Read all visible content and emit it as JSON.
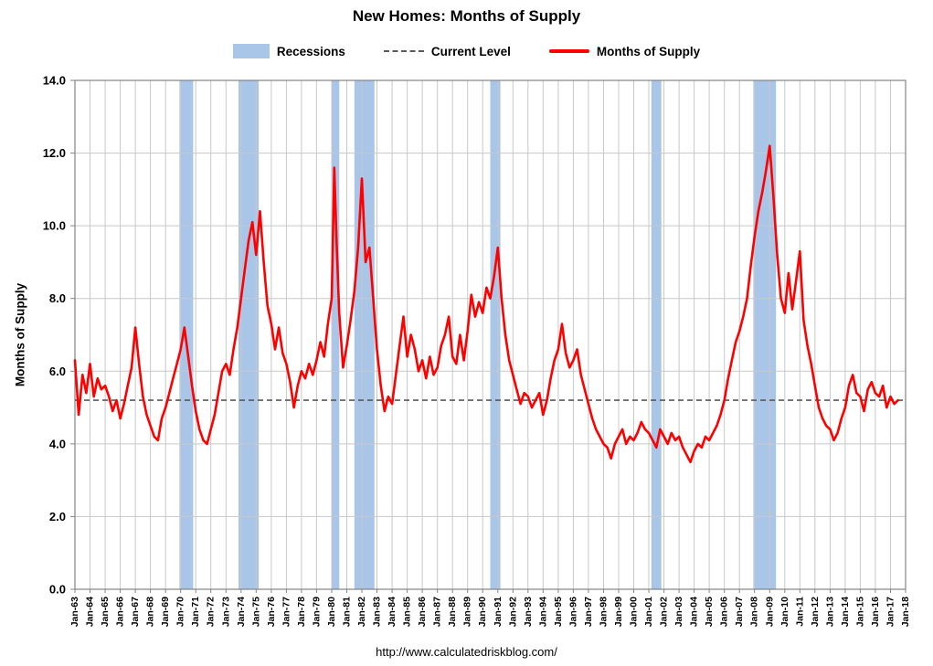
{
  "page": {
    "footer_url": "http://www.calculatedriskblog.com/"
  },
  "chart_data": {
    "type": "line",
    "title": "New Homes: Months of Supply",
    "xlabel": "",
    "ylabel": "Months of Supply",
    "xlim": [
      1963,
      2018
    ],
    "ylim": [
      0,
      14
    ],
    "grid": true,
    "legend_position": "top",
    "y_ticks": [
      0,
      2,
      4,
      6,
      8,
      10,
      12,
      14
    ],
    "y_tick_labels": [
      "0.0",
      "2.0",
      "4.0",
      "6.0",
      "8.0",
      "10.0",
      "12.0",
      "14.0"
    ],
    "x_tick_labels": [
      "Jan-63",
      "Jan-64",
      "Jan-65",
      "Jan-66",
      "Jan-67",
      "Jan-68",
      "Jan-69",
      "Jan-70",
      "Jan-71",
      "Jan-72",
      "Jan-73",
      "Jan-74",
      "Jan-75",
      "Jan-76",
      "Jan-77",
      "Jan-78",
      "Jan-79",
      "Jan-80",
      "Jan-81",
      "Jan-82",
      "Jan-83",
      "Jan-84",
      "Jan-85",
      "Jan-86",
      "Jan-87",
      "Jan-88",
      "Jan-89",
      "Jan-90",
      "Jan-91",
      "Jan-92",
      "Jan-93",
      "Jan-94",
      "Jan-95",
      "Jan-96",
      "Jan-97",
      "Jan-98",
      "Jan-99",
      "Jan-00",
      "Jan-01",
      "Jan-02",
      "Jan-03",
      "Jan-04",
      "Jan-05",
      "Jan-06",
      "Jan-07",
      "Jan-08",
      "Jan-09",
      "Jan-10",
      "Jan-11",
      "Jan-12",
      "Jan-13",
      "Jan-14",
      "Jan-15",
      "Jan-16",
      "Jan-17",
      "Jan-18"
    ],
    "current_level": 5.2,
    "legend": [
      {
        "label": "Recessions",
        "type": "band"
      },
      {
        "label": "Current Level",
        "type": "dashed"
      },
      {
        "label": "Months of Supply",
        "type": "line"
      }
    ],
    "recessions": [
      [
        1969.92,
        1970.83
      ],
      [
        1973.83,
        1975.17
      ],
      [
        1980.0,
        1980.5
      ],
      [
        1981.5,
        1982.83
      ],
      [
        1990.5,
        1991.17
      ],
      [
        2001.17,
        2001.83
      ],
      [
        2007.92,
        2009.42
      ]
    ],
    "colors": {
      "line": "#FF0000",
      "recession": "#A9C6E8",
      "grid": "#C8C8C8",
      "border": "#848484",
      "current": "#595959"
    },
    "series": [
      {
        "name": "Months of Supply",
        "points": [
          [
            1963.0,
            6.3
          ],
          [
            1963.25,
            4.8
          ],
          [
            1963.5,
            5.9
          ],
          [
            1963.75,
            5.4
          ],
          [
            1964.0,
            6.2
          ],
          [
            1964.25,
            5.3
          ],
          [
            1964.5,
            5.8
          ],
          [
            1964.75,
            5.5
          ],
          [
            1965.0,
            5.6
          ],
          [
            1965.25,
            5.3
          ],
          [
            1965.5,
            4.9
          ],
          [
            1965.75,
            5.2
          ],
          [
            1966.0,
            4.7
          ],
          [
            1966.25,
            5.1
          ],
          [
            1966.5,
            5.6
          ],
          [
            1966.75,
            6.1
          ],
          [
            1967.0,
            7.2
          ],
          [
            1967.25,
            6.2
          ],
          [
            1967.5,
            5.3
          ],
          [
            1967.75,
            4.8
          ],
          [
            1968.0,
            4.5
          ],
          [
            1968.25,
            4.2
          ],
          [
            1968.5,
            4.1
          ],
          [
            1968.75,
            4.7
          ],
          [
            1969.0,
            5.0
          ],
          [
            1969.25,
            5.4
          ],
          [
            1969.5,
            5.8
          ],
          [
            1969.75,
            6.2
          ],
          [
            1970.0,
            6.6
          ],
          [
            1970.25,
            7.2
          ],
          [
            1970.5,
            6.4
          ],
          [
            1970.75,
            5.6
          ],
          [
            1971.0,
            4.9
          ],
          [
            1971.25,
            4.4
          ],
          [
            1971.5,
            4.1
          ],
          [
            1971.75,
            4.0
          ],
          [
            1972.0,
            4.4
          ],
          [
            1972.25,
            4.8
          ],
          [
            1972.5,
            5.4
          ],
          [
            1972.75,
            6.0
          ],
          [
            1973.0,
            6.2
          ],
          [
            1973.25,
            5.9
          ],
          [
            1973.5,
            6.6
          ],
          [
            1973.75,
            7.2
          ],
          [
            1974.0,
            8.0
          ],
          [
            1974.25,
            8.8
          ],
          [
            1974.5,
            9.6
          ],
          [
            1974.75,
            10.1
          ],
          [
            1975.0,
            9.2
          ],
          [
            1975.25,
            10.4
          ],
          [
            1975.5,
            9.0
          ],
          [
            1975.75,
            7.8
          ],
          [
            1976.0,
            7.3
          ],
          [
            1976.25,
            6.6
          ],
          [
            1976.5,
            7.2
          ],
          [
            1976.75,
            6.5
          ],
          [
            1977.0,
            6.2
          ],
          [
            1977.25,
            5.7
          ],
          [
            1977.5,
            5.0
          ],
          [
            1977.75,
            5.6
          ],
          [
            1978.0,
            6.0
          ],
          [
            1978.25,
            5.8
          ],
          [
            1978.5,
            6.2
          ],
          [
            1978.75,
            5.9
          ],
          [
            1979.0,
            6.3
          ],
          [
            1979.25,
            6.8
          ],
          [
            1979.5,
            6.4
          ],
          [
            1979.75,
            7.3
          ],
          [
            1980.0,
            8.0
          ],
          [
            1980.17,
            11.6
          ],
          [
            1980.33,
            9.5
          ],
          [
            1980.5,
            7.6
          ],
          [
            1980.75,
            6.1
          ],
          [
            1981.0,
            6.7
          ],
          [
            1981.25,
            7.4
          ],
          [
            1981.5,
            8.2
          ],
          [
            1981.75,
            9.4
          ],
          [
            1982.0,
            11.3
          ],
          [
            1982.25,
            9.0
          ],
          [
            1982.5,
            9.4
          ],
          [
            1982.75,
            8.0
          ],
          [
            1983.0,
            6.6
          ],
          [
            1983.25,
            5.6
          ],
          [
            1983.5,
            4.9
          ],
          [
            1983.75,
            5.3
          ],
          [
            1984.0,
            5.1
          ],
          [
            1984.25,
            5.9
          ],
          [
            1984.5,
            6.7
          ],
          [
            1984.75,
            7.5
          ],
          [
            1985.0,
            6.4
          ],
          [
            1985.25,
            7.0
          ],
          [
            1985.5,
            6.6
          ],
          [
            1985.75,
            6.0
          ],
          [
            1986.0,
            6.3
          ],
          [
            1986.25,
            5.8
          ],
          [
            1986.5,
            6.4
          ],
          [
            1986.75,
            5.9
          ],
          [
            1987.0,
            6.1
          ],
          [
            1987.25,
            6.7
          ],
          [
            1987.5,
            7.0
          ],
          [
            1987.75,
            7.5
          ],
          [
            1988.0,
            6.4
          ],
          [
            1988.25,
            6.2
          ],
          [
            1988.5,
            7.0
          ],
          [
            1988.75,
            6.3
          ],
          [
            1989.0,
            7.1
          ],
          [
            1989.25,
            8.1
          ],
          [
            1989.5,
            7.5
          ],
          [
            1989.75,
            7.9
          ],
          [
            1990.0,
            7.6
          ],
          [
            1990.25,
            8.3
          ],
          [
            1990.5,
            8.0
          ],
          [
            1990.75,
            8.6
          ],
          [
            1991.0,
            9.4
          ],
          [
            1991.25,
            8.0
          ],
          [
            1991.5,
            7.0
          ],
          [
            1991.75,
            6.3
          ],
          [
            1992.0,
            5.9
          ],
          [
            1992.25,
            5.5
          ],
          [
            1992.5,
            5.1
          ],
          [
            1992.75,
            5.4
          ],
          [
            1993.0,
            5.3
          ],
          [
            1993.25,
            5.0
          ],
          [
            1993.5,
            5.2
          ],
          [
            1993.75,
            5.4
          ],
          [
            1994.0,
            4.8
          ],
          [
            1994.25,
            5.2
          ],
          [
            1994.5,
            5.8
          ],
          [
            1994.75,
            6.3
          ],
          [
            1995.0,
            6.6
          ],
          [
            1995.25,
            7.3
          ],
          [
            1995.5,
            6.5
          ],
          [
            1995.75,
            6.1
          ],
          [
            1996.0,
            6.3
          ],
          [
            1996.25,
            6.6
          ],
          [
            1996.5,
            5.9
          ],
          [
            1996.75,
            5.5
          ],
          [
            1997.0,
            5.1
          ],
          [
            1997.25,
            4.7
          ],
          [
            1997.5,
            4.4
          ],
          [
            1997.75,
            4.2
          ],
          [
            1998.0,
            4.0
          ],
          [
            1998.25,
            3.9
          ],
          [
            1998.5,
            3.6
          ],
          [
            1998.75,
            4.0
          ],
          [
            1999.0,
            4.2
          ],
          [
            1999.25,
            4.4
          ],
          [
            1999.5,
            4.0
          ],
          [
            1999.75,
            4.2
          ],
          [
            2000.0,
            4.1
          ],
          [
            2000.25,
            4.3
          ],
          [
            2000.5,
            4.6
          ],
          [
            2000.75,
            4.4
          ],
          [
            2001.0,
            4.3
          ],
          [
            2001.25,
            4.1
          ],
          [
            2001.5,
            3.9
          ],
          [
            2001.75,
            4.4
          ],
          [
            2002.0,
            4.2
          ],
          [
            2002.25,
            4.0
          ],
          [
            2002.5,
            4.3
          ],
          [
            2002.75,
            4.1
          ],
          [
            2003.0,
            4.2
          ],
          [
            2003.25,
            3.9
          ],
          [
            2003.5,
            3.7
          ],
          [
            2003.75,
            3.5
          ],
          [
            2004.0,
            3.8
          ],
          [
            2004.25,
            4.0
          ],
          [
            2004.5,
            3.9
          ],
          [
            2004.75,
            4.2
          ],
          [
            2005.0,
            4.1
          ],
          [
            2005.25,
            4.3
          ],
          [
            2005.5,
            4.5
          ],
          [
            2005.75,
            4.8
          ],
          [
            2006.0,
            5.2
          ],
          [
            2006.25,
            5.8
          ],
          [
            2006.5,
            6.3
          ],
          [
            2006.75,
            6.8
          ],
          [
            2007.0,
            7.1
          ],
          [
            2007.25,
            7.5
          ],
          [
            2007.5,
            8.0
          ],
          [
            2007.75,
            8.9
          ],
          [
            2008.0,
            9.7
          ],
          [
            2008.25,
            10.4
          ],
          [
            2008.5,
            10.9
          ],
          [
            2008.75,
            11.5
          ],
          [
            2009.0,
            12.2
          ],
          [
            2009.25,
            10.8
          ],
          [
            2009.5,
            9.2
          ],
          [
            2009.75,
            8.0
          ],
          [
            2010.0,
            7.6
          ],
          [
            2010.25,
            8.7
          ],
          [
            2010.5,
            7.7
          ],
          [
            2010.75,
            8.5
          ],
          [
            2011.0,
            9.3
          ],
          [
            2011.25,
            7.4
          ],
          [
            2011.5,
            6.7
          ],
          [
            2011.75,
            6.2
          ],
          [
            2012.0,
            5.6
          ],
          [
            2012.25,
            5.0
          ],
          [
            2012.5,
            4.7
          ],
          [
            2012.75,
            4.5
          ],
          [
            2013.0,
            4.4
          ],
          [
            2013.25,
            4.1
          ],
          [
            2013.5,
            4.3
          ],
          [
            2013.75,
            4.7
          ],
          [
            2014.0,
            5.0
          ],
          [
            2014.25,
            5.6
          ],
          [
            2014.5,
            5.9
          ],
          [
            2014.75,
            5.4
          ],
          [
            2015.0,
            5.3
          ],
          [
            2015.25,
            4.9
          ],
          [
            2015.5,
            5.5
          ],
          [
            2015.75,
            5.7
          ],
          [
            2016.0,
            5.4
          ],
          [
            2016.25,
            5.3
          ],
          [
            2016.5,
            5.6
          ],
          [
            2016.75,
            5.0
          ],
          [
            2017.0,
            5.3
          ],
          [
            2017.25,
            5.1
          ],
          [
            2017.5,
            5.2
          ]
        ]
      }
    ]
  }
}
